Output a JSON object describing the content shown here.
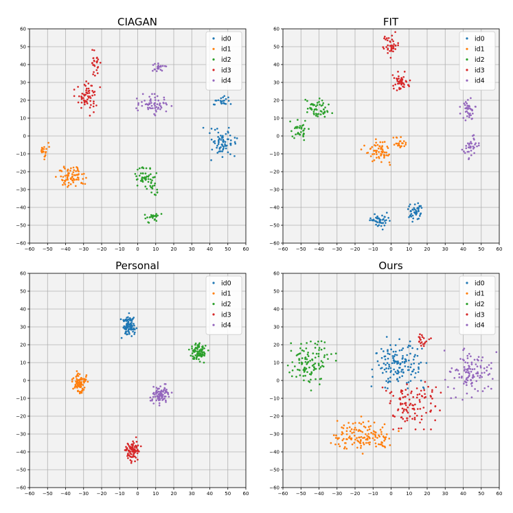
{
  "figure": {
    "layout": "2x2 grid of scatter plots"
  },
  "chart_data": [
    {
      "type": "scatter",
      "title": "CIAGAN",
      "xlim": [
        -60,
        60
      ],
      "ylim": [
        -60,
        60
      ],
      "xticks": [
        -60,
        -50,
        -40,
        -30,
        -20,
        -10,
        0,
        10,
        20,
        30,
        40,
        50,
        60
      ],
      "yticks": [
        -60,
        -50,
        -40,
        -30,
        -20,
        -10,
        0,
        10,
        20,
        30,
        40,
        50,
        60
      ],
      "grid": true,
      "legend_position": "top-right",
      "series": [
        {
          "name": "id0",
          "color": "#1f77b4",
          "clusters": [
            {
              "cx": 46,
              "cy": -5,
              "sx": 4,
              "sy": 4,
              "n": 70
            },
            {
              "cx": 47,
              "cy": 19.5,
              "sx": 2,
              "sy": 1.5,
              "n": 22
            }
          ]
        },
        {
          "name": "id1",
          "color": "#ff7f0e",
          "clusters": [
            {
              "cx": -52,
              "cy": -8,
              "sx": 1.2,
              "sy": 2.2,
              "n": 22
            },
            {
              "cx": -37,
              "cy": -23,
              "sx": 3.5,
              "sy": 3,
              "n": 75
            }
          ]
        },
        {
          "name": "id2",
          "color": "#2ca02c",
          "clusters": [
            {
              "cx": 4,
              "cy": -23,
              "sx": 3,
              "sy": 2.5,
              "n": 45
            },
            {
              "cx": 9,
              "cy": -30,
              "sx": 2,
              "sy": 2,
              "n": 15
            },
            {
              "cx": 8,
              "cy": -45,
              "sx": 2.5,
              "sy": 1.5,
              "n": 25
            }
          ]
        },
        {
          "name": "id3",
          "color": "#d62728",
          "clusters": [
            {
              "cx": -23,
              "cy": 41,
              "sx": 1.5,
              "sy": 3,
              "n": 25
            },
            {
              "cx": -28,
              "cy": 21,
              "sx": 3,
              "sy": 4,
              "n": 60
            }
          ]
        },
        {
          "name": "id4",
          "color": "#9467bd",
          "clusters": [
            {
              "cx": 11,
              "cy": 38.5,
              "sx": 2,
              "sy": 1.3,
              "n": 22
            },
            {
              "cx": 8,
              "cy": 17.5,
              "sx": 4.5,
              "sy": 2.5,
              "n": 60
            }
          ]
        }
      ]
    },
    {
      "type": "scatter",
      "title": "FIT",
      "xlim": [
        -60,
        60
      ],
      "ylim": [
        -60,
        60
      ],
      "xticks": [
        -60,
        -50,
        -40,
        -30,
        -20,
        -10,
        0,
        10,
        20,
        30,
        40,
        50,
        60
      ],
      "yticks": [
        -60,
        -50,
        -40,
        -30,
        -20,
        -10,
        0,
        10,
        20,
        30,
        40,
        50,
        60
      ],
      "grid": true,
      "legend_position": "top-right",
      "series": [
        {
          "name": "id0",
          "color": "#1f77b4",
          "clusters": [
            {
              "cx": -6,
              "cy": -48,
              "sx": 2.5,
              "sy": 2.5,
              "n": 45
            },
            {
              "cx": 13,
              "cy": -42,
              "sx": 2.5,
              "sy": 2.5,
              "n": 45
            }
          ]
        },
        {
          "name": "id1",
          "color": "#ff7f0e",
          "clusters": [
            {
              "cx": -8,
              "cy": -9,
              "sx": 4,
              "sy": 3,
              "n": 60
            },
            {
              "cx": 5,
              "cy": -4,
              "sx": 2,
              "sy": 2,
              "n": 22
            }
          ]
        },
        {
          "name": "id2",
          "color": "#2ca02c",
          "clusters": [
            {
              "cx": -40,
              "cy": 15,
              "sx": 4,
              "sy": 2.5,
              "n": 55
            },
            {
              "cx": -51,
              "cy": 3,
              "sx": 2.5,
              "sy": 3,
              "n": 35
            }
          ]
        },
        {
          "name": "id3",
          "color": "#d62728",
          "clusters": [
            {
              "cx": 0,
              "cy": 51,
              "sx": 2,
              "sy": 3,
              "n": 40
            },
            {
              "cx": 6,
              "cy": 30,
              "sx": 2.5,
              "sy": 2.5,
              "n": 45
            }
          ]
        },
        {
          "name": "id4",
          "color": "#9467bd",
          "clusters": [
            {
              "cx": 43,
              "cy": 14,
              "sx": 2,
              "sy": 3,
              "n": 40
            },
            {
              "cx": 44,
              "cy": -6,
              "sx": 2,
              "sy": 3,
              "n": 35
            }
          ]
        }
      ]
    },
    {
      "type": "scatter",
      "title": "Personal",
      "xlim": [
        -60,
        60
      ],
      "ylim": [
        -60,
        60
      ],
      "xticks": [
        -60,
        -50,
        -40,
        -30,
        -20,
        -10,
        0,
        10,
        20,
        30,
        40,
        50,
        60
      ],
      "yticks": [
        -60,
        -50,
        -40,
        -30,
        -20,
        -10,
        0,
        10,
        20,
        30,
        40,
        50,
        60
      ],
      "grid": true,
      "legend_position": "top-right",
      "series": [
        {
          "name": "id0",
          "color": "#1f77b4",
          "clusters": [
            {
              "cx": -5,
              "cy": 31,
              "sx": 1.8,
              "sy": 3,
              "n": 90
            }
          ]
        },
        {
          "name": "id1",
          "color": "#ff7f0e",
          "clusters": [
            {
              "cx": -32,
              "cy": -2,
              "sx": 1.8,
              "sy": 3,
              "n": 90
            }
          ]
        },
        {
          "name": "id2",
          "color": "#2ca02c",
          "clusters": [
            {
              "cx": 34,
              "cy": 16,
              "sx": 2.3,
              "sy": 2.5,
              "n": 90
            }
          ]
        },
        {
          "name": "id3",
          "color": "#d62728",
          "clusters": [
            {
              "cx": -3,
              "cy": -39,
              "sx": 2,
              "sy": 3,
              "n": 90
            }
          ]
        },
        {
          "name": "id4",
          "color": "#9467bd",
          "clusters": [
            {
              "cx": 13,
              "cy": -8,
              "sx": 2.5,
              "sy": 2.5,
              "n": 90
            }
          ]
        }
      ]
    },
    {
      "type": "scatter",
      "title": "Ours",
      "xlim": [
        -60,
        60
      ],
      "ylim": [
        -60,
        60
      ],
      "xticks": [
        -60,
        -50,
        -40,
        -30,
        -20,
        -10,
        0,
        10,
        20,
        30,
        40,
        50,
        60
      ],
      "yticks": [
        -60,
        -50,
        -40,
        -30,
        -20,
        -10,
        0,
        10,
        20,
        30,
        40,
        50,
        60
      ],
      "grid": true,
      "legend_position": "top-right",
      "series": [
        {
          "name": "id0",
          "color": "#1f77b4",
          "clusters": [
            {
              "cx": 4,
              "cy": 10,
              "sx": 6.5,
              "sy": 6,
              "n": 140
            }
          ]
        },
        {
          "name": "id1",
          "color": "#ff7f0e",
          "clusters": [
            {
              "cx": -15,
              "cy": -31,
              "sx": 8,
              "sy": 4.5,
              "n": 140
            }
          ]
        },
        {
          "name": "id2",
          "color": "#2ca02c",
          "clusters": [
            {
              "cx": -45,
              "cy": 10,
              "sx": 6,
              "sy": 6.5,
              "n": 110
            }
          ]
        },
        {
          "name": "id3",
          "color": "#d62728",
          "clusters": [
            {
              "cx": 12,
              "cy": -13,
              "sx": 7,
              "sy": 6,
              "n": 110
            },
            {
              "cx": 19,
              "cy": 22,
              "sx": 2.5,
              "sy": 3,
              "n": 20
            }
          ]
        },
        {
          "name": "id4",
          "color": "#9467bd",
          "clusters": [
            {
              "cx": 44,
              "cy": 4,
              "sx": 6,
              "sy": 6.5,
              "n": 110
            }
          ]
        }
      ]
    }
  ]
}
